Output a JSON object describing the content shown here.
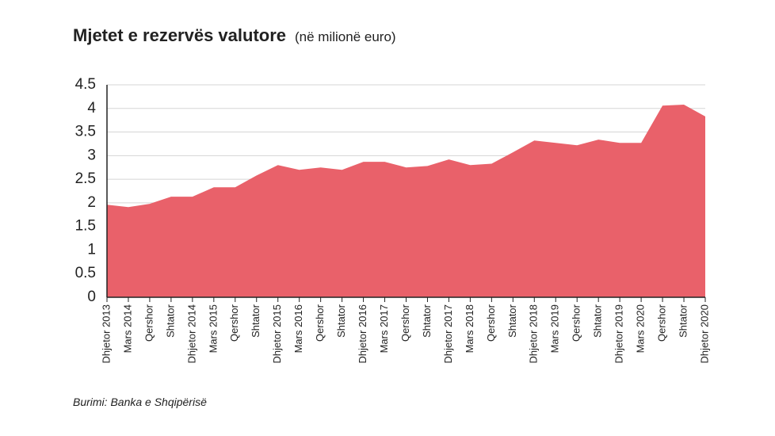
{
  "chart_data": {
    "type": "area",
    "title": "Mjetet e rezervës valutore",
    "subtitle": "(në milionë euro)",
    "source": "Burimi: Banka e Shqipërisë",
    "categories": [
      "Dhjetor 2013",
      "Mars 2014",
      "Qershor",
      "Shtator",
      "Dhjetor 2014",
      "Mars 2015",
      "Qershor",
      "Shtator",
      "Dhjetor 2015",
      "Mars 2016",
      "Qershor",
      "Shtator",
      "Dhjetor 2016",
      "Mars 2017",
      "Qershor",
      "Shtator",
      "Dhjetor 2017",
      "Mars 2018",
      "Qershor",
      "Shtator",
      "Dhjetor 2018",
      "Mars 2019",
      "Qershor",
      "Shtator",
      "Dhjetor 2019",
      "Mars 2020",
      "Qershor",
      "Shtator",
      "Dhjetor 2020"
    ],
    "values": [
      1.96,
      1.91,
      1.98,
      2.13,
      2.13,
      2.33,
      2.33,
      2.58,
      2.8,
      2.7,
      2.75,
      2.7,
      2.87,
      2.87,
      2.75,
      2.78,
      2.92,
      2.8,
      2.83,
      3.07,
      3.32,
      3.27,
      3.22,
      3.34,
      3.27,
      3.27,
      4.06,
      4.08,
      3.83
    ],
    "color": "#e9616a",
    "ylim": [
      0,
      4.5
    ],
    "yticks": [
      0,
      0.5,
      1,
      1.5,
      2,
      2.5,
      3,
      3.5,
      4,
      4.5
    ],
    "grid": true
  }
}
